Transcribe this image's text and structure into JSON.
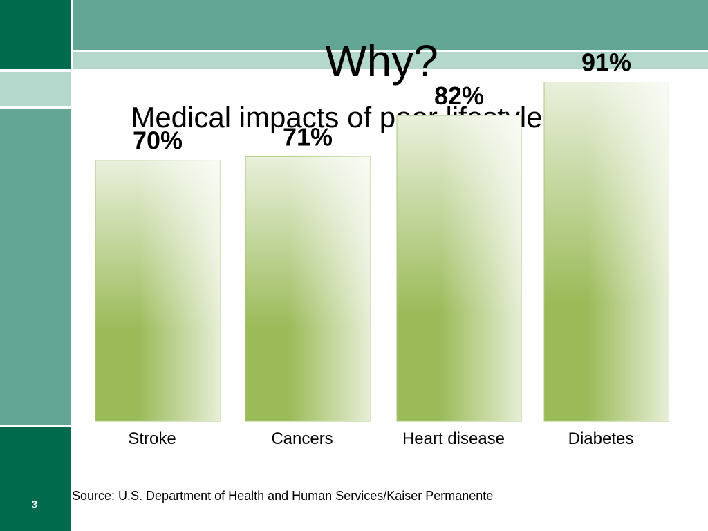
{
  "slide": {
    "title": "Why?",
    "subtitle": "Medical impacts of poor lifestyle choices",
    "page_number": "3",
    "source": "Source: U.S. Department of Health and Human Services/Kaiser Permanente"
  },
  "colors": {
    "sidebar_dark": "#006B4C",
    "sidebar_light": "#B4D8CC",
    "sidebar_mid": "#63A693",
    "banner_dark": "#63A693",
    "banner_light": "#B4D8CC",
    "bar_base": "#9BBB59",
    "bar_border": "#A9C97C"
  },
  "chart_data": {
    "type": "bar",
    "categories": [
      "Stroke",
      "Cancers",
      "Heart disease",
      "Diabetes"
    ],
    "values": [
      70,
      71,
      82,
      91
    ],
    "data_labels": [
      "70%",
      "71%",
      "82%",
      "91%"
    ],
    "title": "",
    "xlabel": "",
    "ylabel": "",
    "ylim": [
      0,
      100
    ],
    "grid": false,
    "legend": "none"
  }
}
